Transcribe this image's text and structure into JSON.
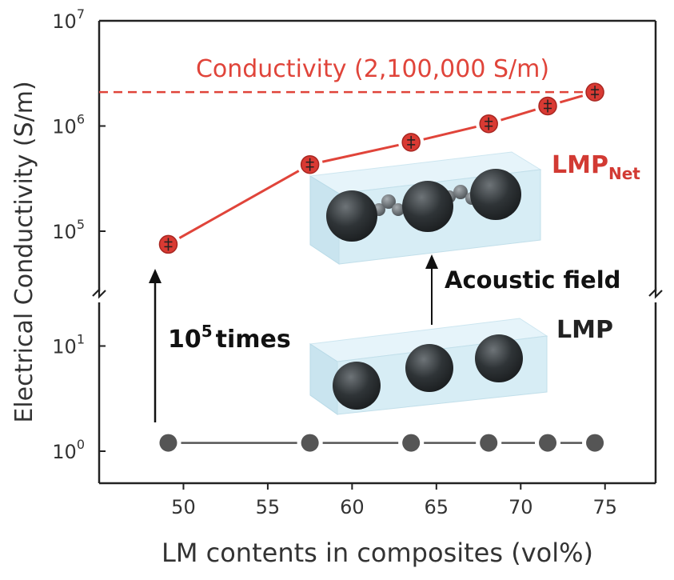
{
  "chart_data": {
    "type": "line",
    "xlabel": "LM contents in composites (vol%)",
    "ylabel": "Electrical Conductivity (S/m)",
    "xlim": [
      45,
      78
    ],
    "x_ticks": [
      50,
      55,
      60,
      65,
      70,
      75
    ],
    "y_scale": "log (broken axis)",
    "y_ticks_lower": [
      {
        "base": "10",
        "exp": "0"
      },
      {
        "base": "10",
        "exp": "1"
      }
    ],
    "y_ticks_upper": [
      {
        "base": "10",
        "exp": "5"
      },
      {
        "base": "10",
        "exp": "6"
      },
      {
        "base": "10",
        "exp": "7"
      }
    ],
    "series": [
      {
        "name": "LMP_Net",
        "label_main": "LMP",
        "label_sub": "Net",
        "color": "#e0443a",
        "x": [
          49.1,
          57.5,
          63.5,
          68.1,
          71.6,
          74.4
        ],
        "y": [
          75000,
          430000,
          700000,
          1050000,
          1550000,
          2100000
        ]
      },
      {
        "name": "LMP",
        "label_main": "LMP",
        "color": "#555555",
        "x": [
          49.1,
          57.5,
          63.5,
          68.1,
          71.6,
          74.4
        ],
        "y": [
          1.2,
          1.2,
          1.2,
          1.2,
          1.2,
          1.2
        ]
      }
    ],
    "reference_line": {
      "y": 2100000,
      "label": "Conductivity (2,100,000 S/m)",
      "color": "#e0443a"
    },
    "annotations": {
      "times_base": "10",
      "times_exp": "5",
      "times_word": "times",
      "field_label": "Acoustic field"
    },
    "grid": false,
    "legend": "none"
  }
}
